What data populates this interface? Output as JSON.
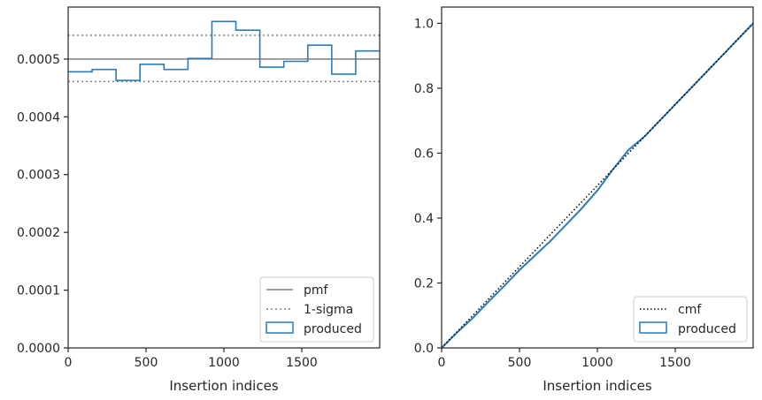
{
  "colors": {
    "produced": "#2b7bba",
    "pmf": "#808080",
    "sigma": "#808080",
    "cmf": "#000000",
    "axes": "#262626"
  },
  "chart_data": [
    {
      "type": "histogram",
      "xlabel": "Insertion indices",
      "ylabel": "",
      "xlim": [
        0,
        2000
      ],
      "ylim": [
        0,
        0.00059
      ],
      "xticks": [
        0,
        500,
        1000,
        1500
      ],
      "yticks": [
        0,
        0.0001,
        0.0002,
        0.0003,
        0.0004,
        0.0005
      ],
      "ytick_labels": [
        "0.0000",
        "0.0001",
        "0.0002",
        "0.0003",
        "0.0004",
        "0.0005"
      ],
      "bin_edges": [
        0,
        153.8,
        307.7,
        461.5,
        615.4,
        769.2,
        923.1,
        1076.9,
        1230.8,
        1384.6,
        1538.5,
        1692.3,
        1846.2,
        2000
      ],
      "produced": [
        0.000478,
        0.000482,
        0.000463,
        0.000491,
        0.000482,
        0.000501,
        0.000565,
        0.00055,
        0.000486,
        0.000496,
        0.000524,
        0.000474,
        0.000514
      ],
      "pmf": 0.0005,
      "sigma_upper": 0.000541,
      "sigma_lower": 0.000461,
      "legend": [
        "pmf",
        "1-sigma",
        "produced"
      ],
      "legend_loc": "lower right",
      "grid": false
    },
    {
      "type": "line",
      "xlabel": "Insertion indices",
      "ylabel": "",
      "xlim": [
        0,
        2000
      ],
      "ylim": [
        0,
        1.05
      ],
      "xticks": [
        0,
        500,
        1000,
        1500
      ],
      "yticks": [
        0,
        0.2,
        0.4,
        0.6,
        0.8,
        1.0
      ],
      "ytick_labels": [
        "0.0",
        "0.2",
        "0.4",
        "0.6",
        "0.8",
        "1.0"
      ],
      "cmf": {
        "x": [
          0,
          2000
        ],
        "y": [
          0,
          1
        ]
      },
      "produced": {
        "x": [
          0,
          100,
          200,
          300,
          400,
          500,
          600,
          700,
          800,
          900,
          1000,
          1100,
          1200,
          1300,
          1400,
          1500,
          1600,
          1700,
          1800,
          1900,
          2000
        ],
        "y": [
          0,
          0.048,
          0.092,
          0.142,
          0.19,
          0.24,
          0.285,
          0.33,
          0.38,
          0.43,
          0.485,
          0.55,
          0.61,
          0.65,
          0.7,
          0.75,
          0.8,
          0.85,
          0.9,
          0.95,
          1.0
        ]
      },
      "legend": [
        "cmf",
        "produced"
      ],
      "legend_loc": "lower right",
      "grid": false
    }
  ]
}
